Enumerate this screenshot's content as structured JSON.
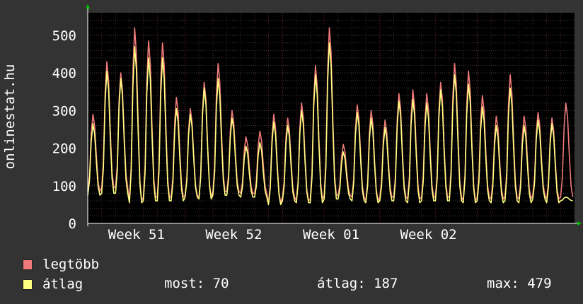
{
  "colors": {
    "background": "#333333",
    "plot_background": "#000000",
    "grid": "#3a3a3a",
    "week_grid": "#7a2a2a",
    "axis": "#ffffff",
    "arrow": "#00c000",
    "max_series": "#f07a7a",
    "avg_series": "#ffff80",
    "text": "#ffffff"
  },
  "legend": {
    "max_label": "legtöbb",
    "avg_label": "átlag",
    "now_text": "most: 70",
    "avg_text": "átlag: 187",
    "max_text": "max: 479"
  },
  "chart_data": {
    "type": "line",
    "ylabel": "onlinestat.hu",
    "ylim": [
      0,
      560
    ],
    "yticks": [
      0,
      100,
      200,
      300,
      400,
      500
    ],
    "x_tick_labels": [
      "Week 51",
      "Week 52",
      "Week 01",
      "Week 02"
    ],
    "grid": true,
    "legend_placement": "bottom-left",
    "x_range_days": 35,
    "day_samples": 8,
    "baseline_profile": [
      0.0,
      0.2,
      0.75,
      1.0,
      0.85,
      0.45,
      0.12,
      0.0
    ],
    "series": [
      {
        "name": "legtöbb",
        "color": "#f07a7a",
        "daily_low": [
          85,
          95,
          95,
          60,
          70,
          70,
          70,
          75,
          70,
          85,
          85,
          80,
          80,
          55,
          70,
          60,
          65,
          75,
          75,
          70,
          60,
          70,
          70,
          65,
          70,
          70,
          70,
          60,
          70,
          65,
          70,
          65,
          75,
          65,
          70
        ],
        "daily_peak": [
          290,
          430,
          400,
          520,
          485,
          480,
          335,
          305,
          375,
          425,
          300,
          230,
          245,
          290,
          280,
          320,
          420,
          520,
          210,
          315,
          300,
          275,
          345,
          355,
          345,
          375,
          425,
          405,
          340,
          285,
          395,
          285,
          295,
          280,
          320
        ]
      },
      {
        "name": "átlag",
        "color": "#ffff80",
        "daily_low": [
          75,
          80,
          80,
          55,
          60,
          60,
          60,
          70,
          65,
          75,
          75,
          70,
          70,
          50,
          60,
          55,
          55,
          65,
          65,
          60,
          55,
          60,
          60,
          55,
          60,
          60,
          60,
          55,
          60,
          55,
          60,
          55,
          65,
          55,
          60
        ],
        "daily_peak": [
          265,
          405,
          385,
          470,
          440,
          440,
          305,
          290,
          360,
          385,
          280,
          205,
          215,
          270,
          260,
          300,
          395,
          480,
          190,
          295,
          280,
          255,
          325,
          330,
          320,
          355,
          395,
          370,
          310,
          260,
          360,
          260,
          275,
          265,
          70
        ]
      }
    ]
  }
}
